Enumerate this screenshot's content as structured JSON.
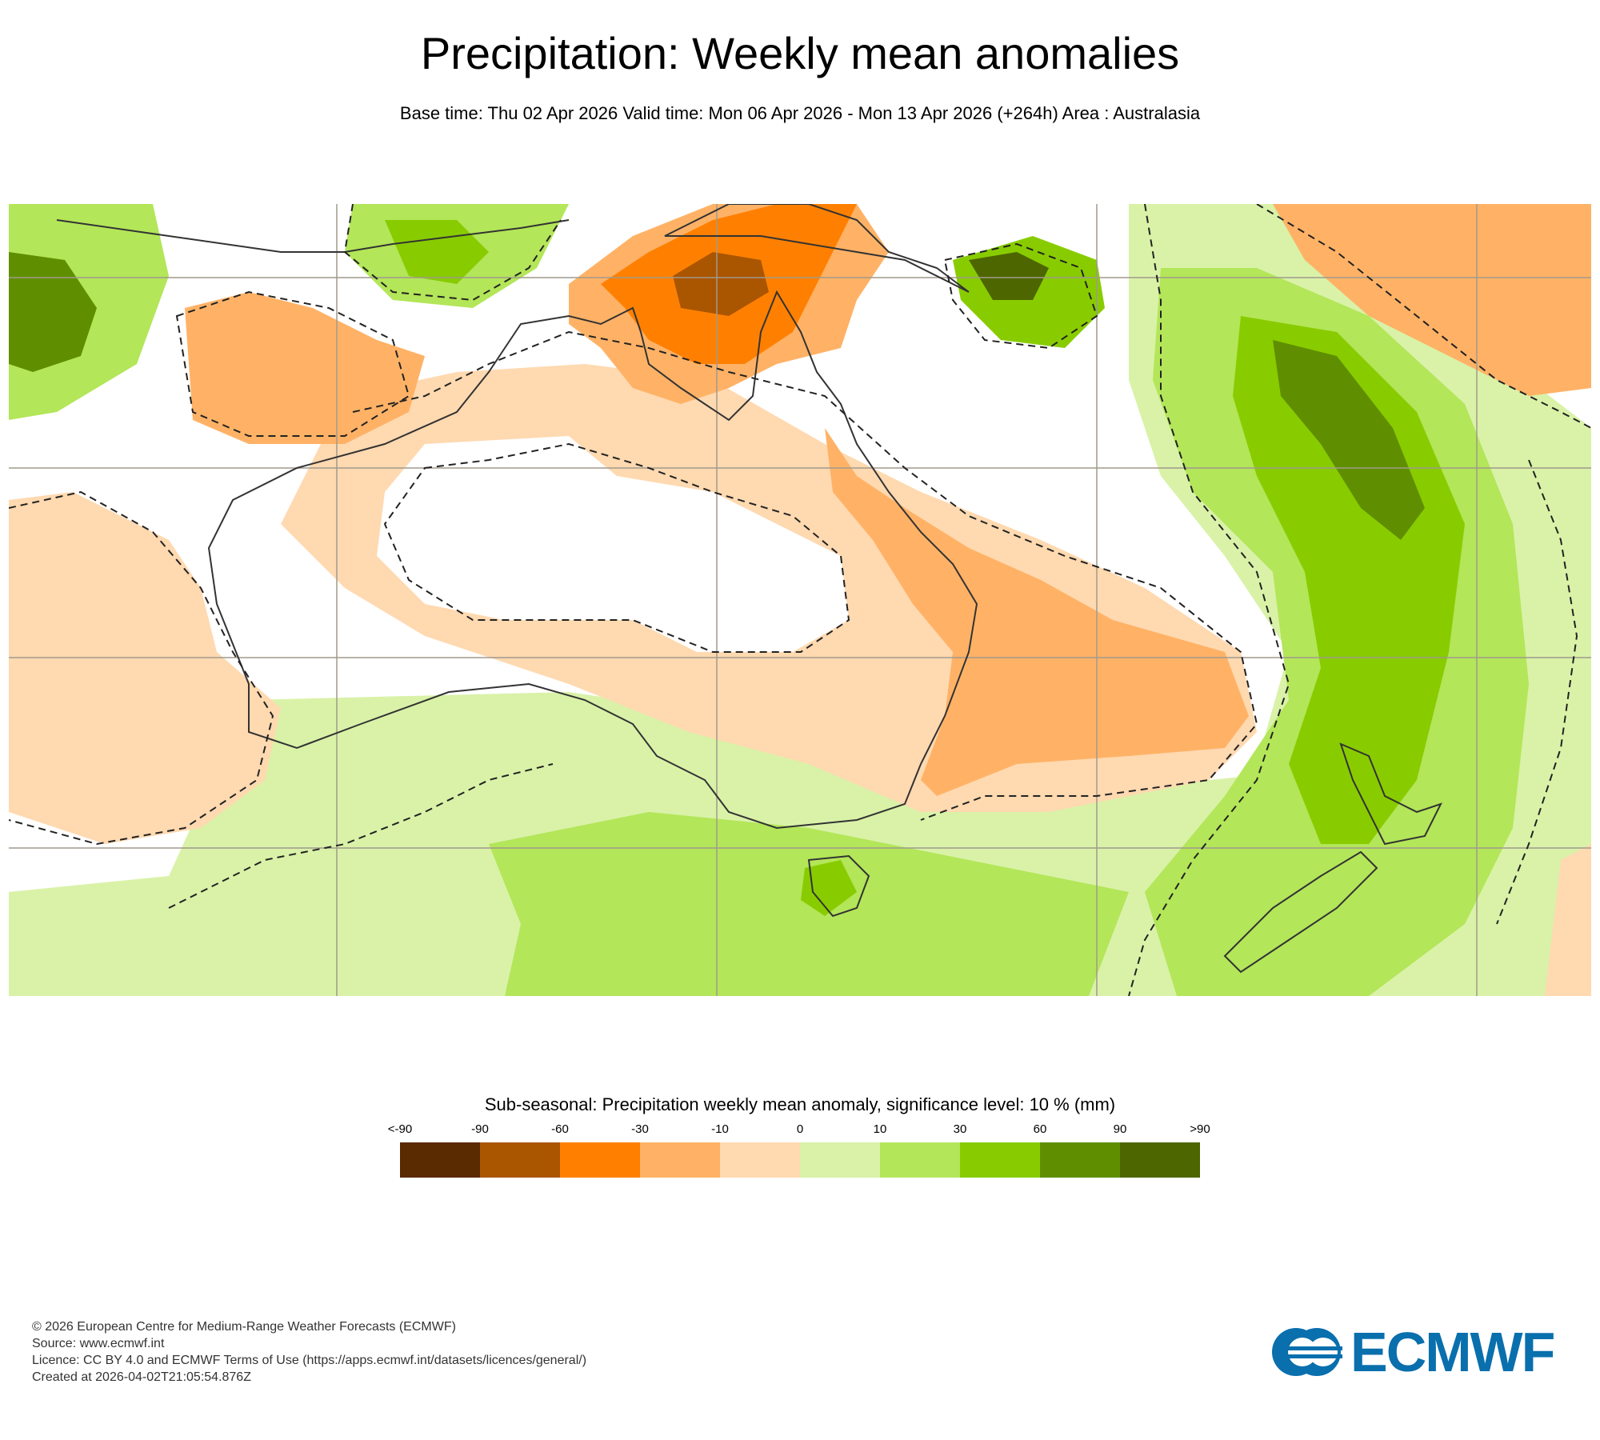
{
  "header": {
    "title": "Precipitation: Weekly mean anomalies",
    "subtitle": "Base time: Thu 02 Apr 2026 Valid time: Mon 06 Apr 2026 - Mon 13 Apr 2026 (+264h) Area : Australasia"
  },
  "legend": {
    "title": "Sub-seasonal: Precipitation weekly mean anomaly, significance level: 10 % (mm)",
    "labels": [
      "<-90",
      "-90",
      "-60",
      "-30",
      "-10",
      "0",
      "10",
      "30",
      "60",
      "90",
      ">90"
    ],
    "colors": [
      "#5a2a00",
      "#aa5500",
      "#ff8000",
      "#ffb266",
      "#ffd9b0",
      "#d9f2a8",
      "#b3e659",
      "#88cc00",
      "#5f8f00",
      "#4d6600"
    ]
  },
  "footer": {
    "line1": "© 2026 European Centre for Medium-Range Weather Forecasts (ECMWF)",
    "line2": "Source: www.ecmwf.int",
    "line3": "Licence: CC BY 4.0 and ECMWF Terms of Use (https://apps.ecmwf.int/datasets/licences/general/)",
    "line4": "Created at 2026-04-02T21:05:54.876Z"
  },
  "logo": {
    "text": "ECMWF",
    "color": "#0a6fad"
  }
}
